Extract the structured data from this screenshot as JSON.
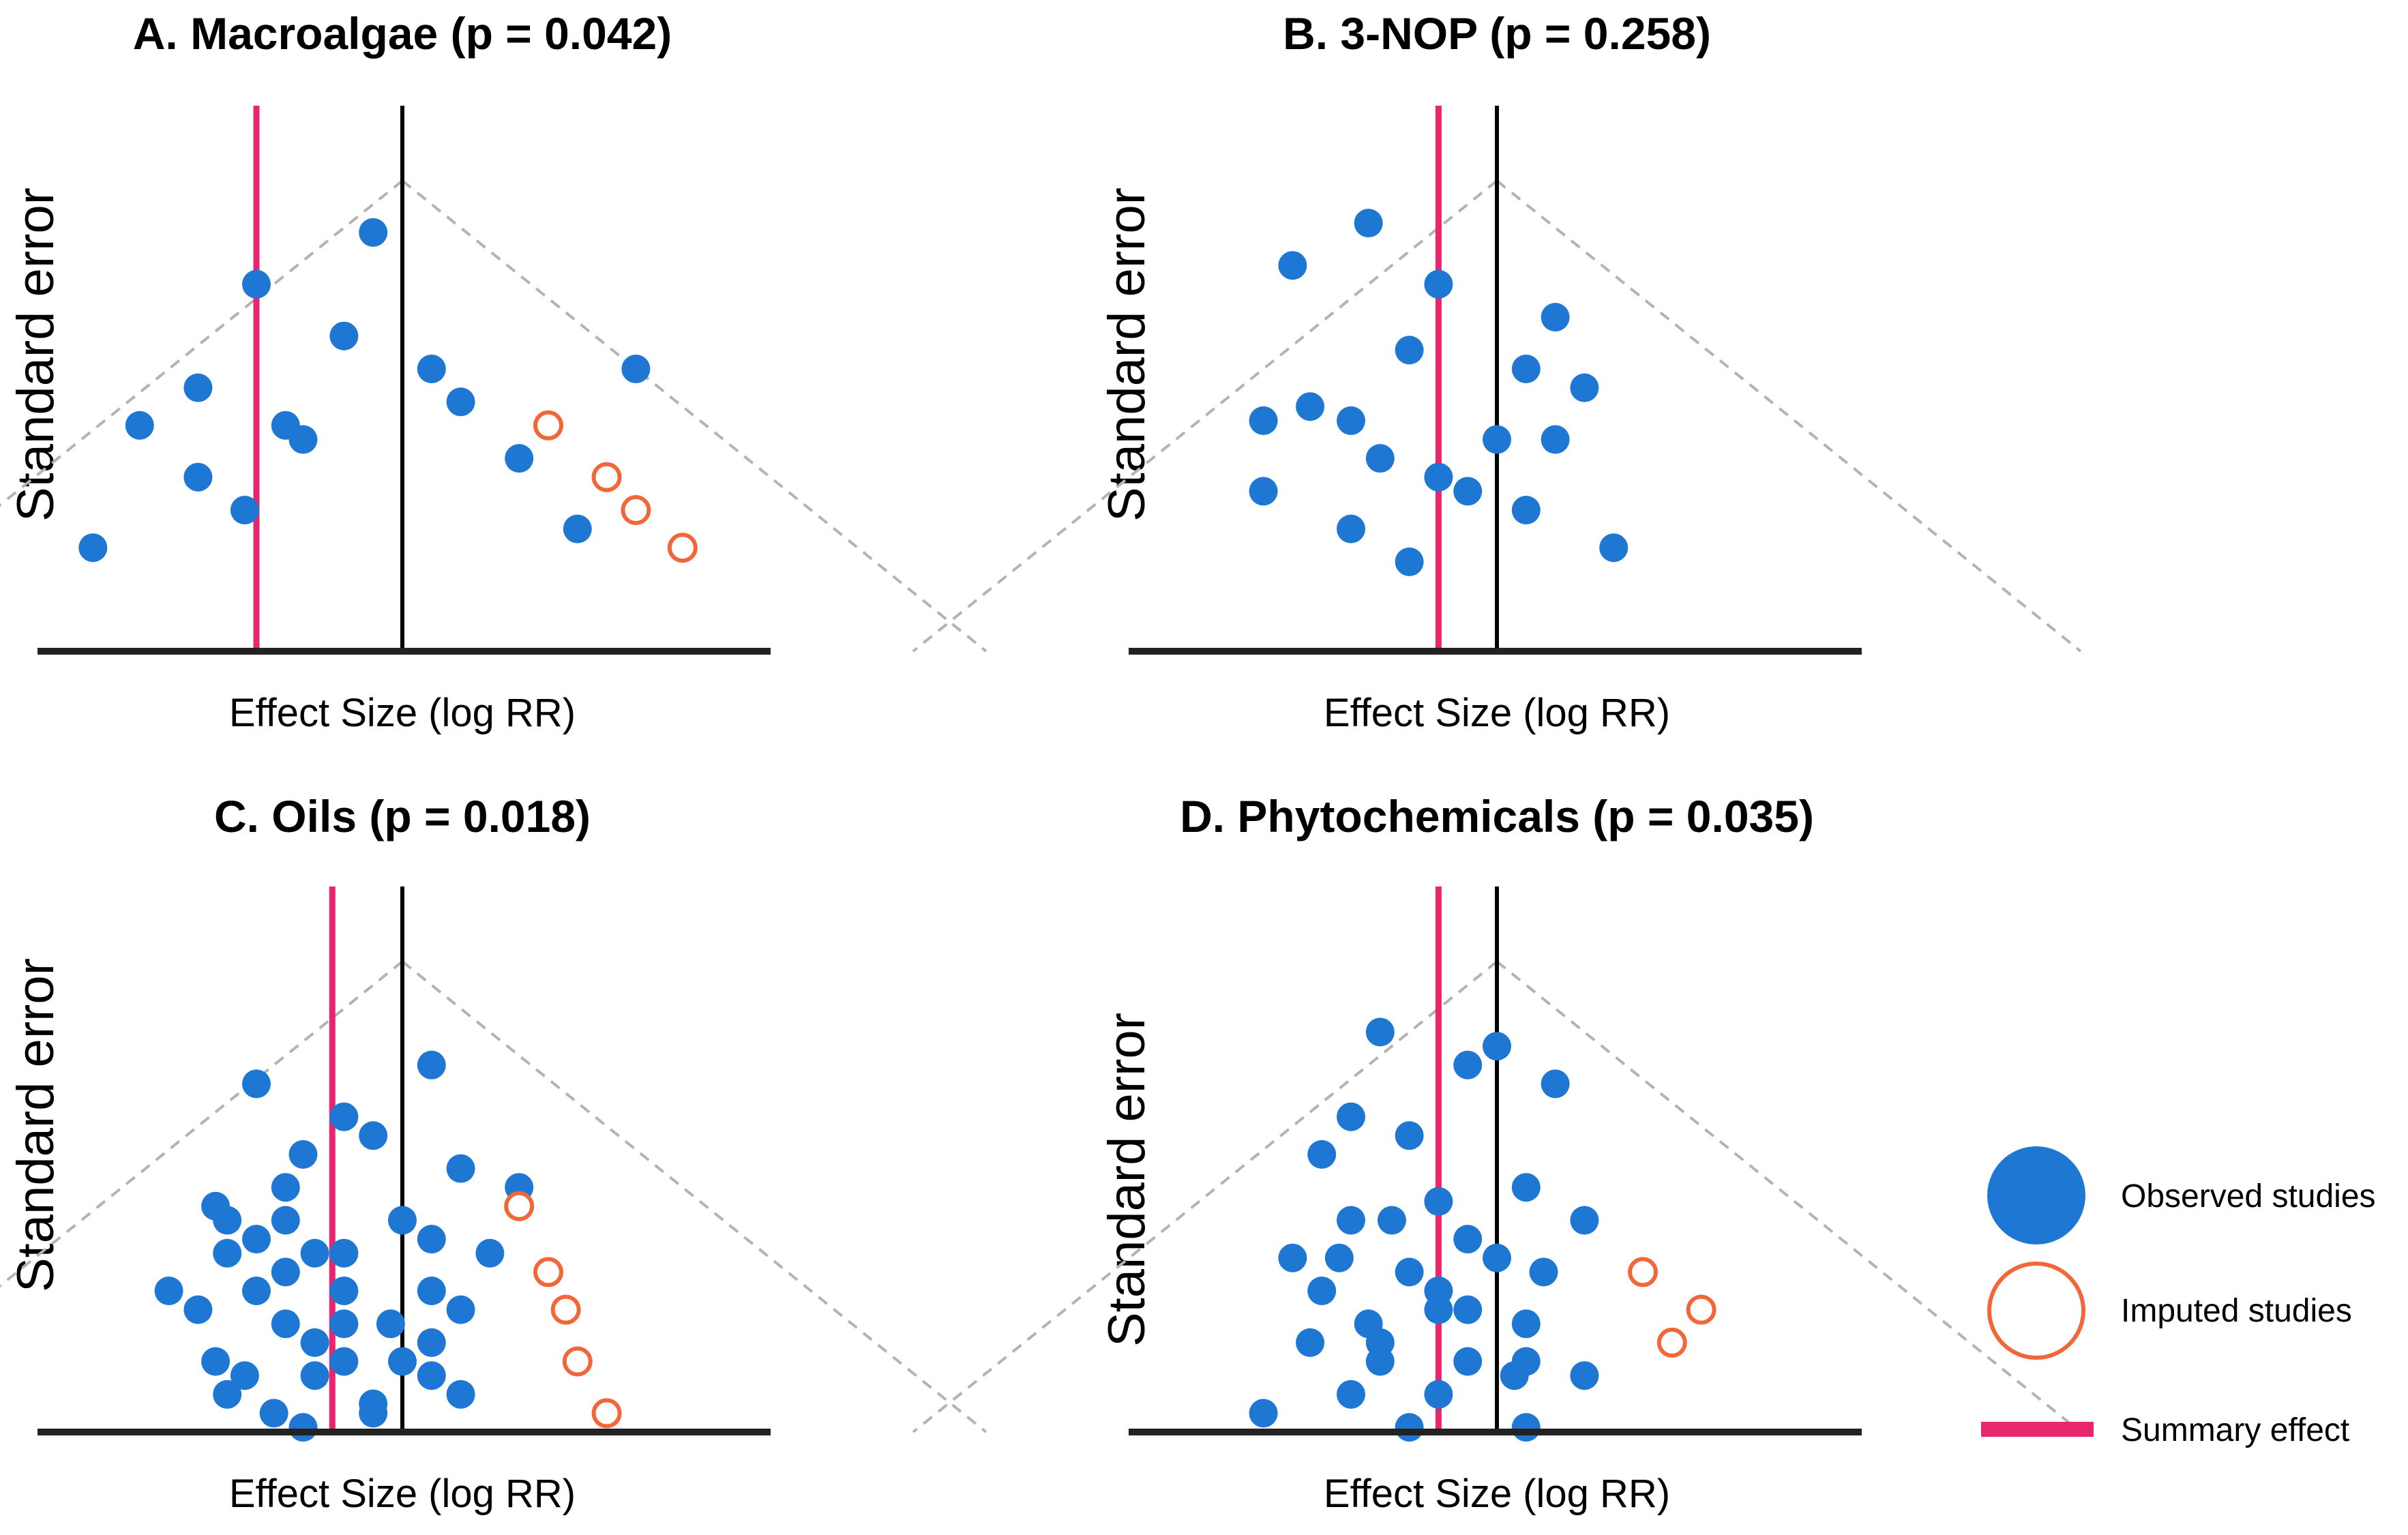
{
  "colors": {
    "observed": "#1f77d4",
    "imputed": "#f2673a",
    "summary": "#e8256f",
    "zero_line": "#000000",
    "funnel": "#b3b3b3"
  },
  "legend": {
    "observed": "Observed studies",
    "imputed": "Imputed studies",
    "summary": "Summary effect"
  },
  "chart_data": [
    {
      "type": "scatter",
      "subtype": "funnel",
      "title": "A. Macroalgae (p = 0.042)",
      "xlabel": "Effect Size (log RR)",
      "ylabel": "Standard error",
      "xlim": [
        -2.0,
        2.0
      ],
      "ylim": [
        0,
        1.0
      ],
      "y_inverted": true,
      "null_effect": 0,
      "summary_effect": -0.5,
      "observed": [
        {
          "x": -0.1,
          "y": 0.11
        },
        {
          "x": -0.5,
          "y": 0.22
        },
        {
          "x": -0.2,
          "y": 0.33
        },
        {
          "x": 0.1,
          "y": 0.4
        },
        {
          "x": 0.8,
          "y": 0.4
        },
        {
          "x": -0.7,
          "y": 0.44
        },
        {
          "x": 0.2,
          "y": 0.47
        },
        {
          "x": -0.9,
          "y": 0.52
        },
        {
          "x": -0.4,
          "y": 0.52
        },
        {
          "x": -0.34,
          "y": 0.55
        },
        {
          "x": 0.4,
          "y": 0.59
        },
        {
          "x": -0.7,
          "y": 0.63
        },
        {
          "x": -0.54,
          "y": 0.7
        },
        {
          "x": 0.6,
          "y": 0.74
        },
        {
          "x": -1.06,
          "y": 0.78
        }
      ],
      "imputed": [
        {
          "x": 0.5,
          "y": 0.52
        },
        {
          "x": 0.7,
          "y": 0.63
        },
        {
          "x": 0.8,
          "y": 0.7
        },
        {
          "x": 0.96,
          "y": 0.78
        }
      ]
    },
    {
      "type": "scatter",
      "subtype": "funnel",
      "title": "B. 3-NOP (p = 0.258)",
      "xlabel": "Effect Size (log RR)",
      "ylabel": "Standard error",
      "xlim": [
        -2.0,
        2.0
      ],
      "ylim": [
        0,
        1.0
      ],
      "y_inverted": true,
      "null_effect": 0,
      "summary_effect": -0.2,
      "observed": [
        {
          "x": -0.44,
          "y": 0.09
        },
        {
          "x": -0.7,
          "y": 0.18
        },
        {
          "x": -0.2,
          "y": 0.22
        },
        {
          "x": 0.2,
          "y": 0.29
        },
        {
          "x": -0.3,
          "y": 0.36
        },
        {
          "x": 0.1,
          "y": 0.4
        },
        {
          "x": 0.3,
          "y": 0.44
        },
        {
          "x": -0.64,
          "y": 0.48
        },
        {
          "x": -0.8,
          "y": 0.51
        },
        {
          "x": -0.5,
          "y": 0.51
        },
        {
          "x": 0.0,
          "y": 0.55
        },
        {
          "x": 0.2,
          "y": 0.55
        },
        {
          "x": -0.4,
          "y": 0.59
        },
        {
          "x": -0.2,
          "y": 0.63
        },
        {
          "x": -0.1,
          "y": 0.66
        },
        {
          "x": -0.8,
          "y": 0.66
        },
        {
          "x": 0.1,
          "y": 0.7
        },
        {
          "x": -0.5,
          "y": 0.74
        },
        {
          "x": 0.4,
          "y": 0.78
        },
        {
          "x": -0.3,
          "y": 0.81
        }
      ],
      "imputed": []
    },
    {
      "type": "scatter",
      "subtype": "funnel",
      "title": "C. Oils (p = 0.018)",
      "xlabel": "Effect Size (log RR)",
      "ylabel": "Standard error",
      "xlim": [
        -2.0,
        2.0
      ],
      "ylim": [
        0,
        1.0
      ],
      "y_inverted": true,
      "null_effect": 0,
      "summary_effect": -0.24,
      "observed": [
        {
          "x": 0.1,
          "y": 0.22
        },
        {
          "x": -0.5,
          "y": 0.26
        },
        {
          "x": -0.2,
          "y": 0.33
        },
        {
          "x": -0.1,
          "y": 0.37
        },
        {
          "x": -0.34,
          "y": 0.41
        },
        {
          "x": 0.2,
          "y": 0.44
        },
        {
          "x": 0.4,
          "y": 0.48
        },
        {
          "x": -0.4,
          "y": 0.48
        },
        {
          "x": -0.64,
          "y": 0.52
        },
        {
          "x": -0.6,
          "y": 0.55
        },
        {
          "x": -0.4,
          "y": 0.55
        },
        {
          "x": 0.0,
          "y": 0.55
        },
        {
          "x": -0.5,
          "y": 0.59
        },
        {
          "x": 0.1,
          "y": 0.59
        },
        {
          "x": -0.3,
          "y": 0.62
        },
        {
          "x": -0.2,
          "y": 0.62
        },
        {
          "x": 0.3,
          "y": 0.62
        },
        {
          "x": -0.6,
          "y": 0.62
        },
        {
          "x": -0.4,
          "y": 0.66
        },
        {
          "x": -0.8,
          "y": 0.7
        },
        {
          "x": -0.5,
          "y": 0.7
        },
        {
          "x": -0.2,
          "y": 0.7
        },
        {
          "x": 0.1,
          "y": 0.7
        },
        {
          "x": -0.7,
          "y": 0.74
        },
        {
          "x": 0.2,
          "y": 0.74
        },
        {
          "x": -0.4,
          "y": 0.77
        },
        {
          "x": -0.2,
          "y": 0.77
        },
        {
          "x": -0.04,
          "y": 0.77
        },
        {
          "x": -0.3,
          "y": 0.81
        },
        {
          "x": 0.1,
          "y": 0.81
        },
        {
          "x": -0.64,
          "y": 0.85
        },
        {
          "x": -0.2,
          "y": 0.85
        },
        {
          "x": 0.0,
          "y": 0.85
        },
        {
          "x": -0.54,
          "y": 0.88
        },
        {
          "x": 0.1,
          "y": 0.88
        },
        {
          "x": -0.3,
          "y": 0.88
        },
        {
          "x": -0.6,
          "y": 0.92
        },
        {
          "x": 0.2,
          "y": 0.92
        },
        {
          "x": -0.44,
          "y": 0.96
        },
        {
          "x": -0.1,
          "y": 0.96
        },
        {
          "x": -0.34,
          "y": 0.99
        },
        {
          "x": -0.1,
          "y": 0.94
        }
      ],
      "imputed": [
        {
          "x": 0.4,
          "y": 0.52
        },
        {
          "x": 0.5,
          "y": 0.66
        },
        {
          "x": 0.56,
          "y": 0.74
        },
        {
          "x": 0.6,
          "y": 0.85
        },
        {
          "x": 0.7,
          "y": 0.96
        }
      ]
    },
    {
      "type": "scatter",
      "subtype": "funnel",
      "title": "D. Phytochemicals (p = 0.035)",
      "xlabel": "Effect Size (log RR)",
      "ylabel": "Standard error",
      "xlim": [
        -2.0,
        2.0
      ],
      "ylim": [
        0,
        1.0
      ],
      "y_inverted": true,
      "null_effect": 0,
      "summary_effect": -0.2,
      "observed": [
        {
          "x": -0.4,
          "y": 0.15
        },
        {
          "x": 0.0,
          "y": 0.18
        },
        {
          "x": -0.1,
          "y": 0.22
        },
        {
          "x": 0.2,
          "y": 0.26
        },
        {
          "x": -0.5,
          "y": 0.33
        },
        {
          "x": -0.3,
          "y": 0.37
        },
        {
          "x": -0.6,
          "y": 0.41
        },
        {
          "x": 0.1,
          "y": 0.48
        },
        {
          "x": -0.2,
          "y": 0.51
        },
        {
          "x": -0.5,
          "y": 0.55
        },
        {
          "x": -0.36,
          "y": 0.55
        },
        {
          "x": 0.3,
          "y": 0.55
        },
        {
          "x": -0.1,
          "y": 0.59
        },
        {
          "x": -0.7,
          "y": 0.63
        },
        {
          "x": -0.54,
          "y": 0.63
        },
        {
          "x": 0.0,
          "y": 0.63
        },
        {
          "x": -0.3,
          "y": 0.66
        },
        {
          "x": 0.16,
          "y": 0.66
        },
        {
          "x": -0.6,
          "y": 0.7
        },
        {
          "x": -0.2,
          "y": 0.7
        },
        {
          "x": -0.1,
          "y": 0.74
        },
        {
          "x": -0.2,
          "y": 0.74
        },
        {
          "x": 0.1,
          "y": 0.77
        },
        {
          "x": -0.44,
          "y": 0.77
        },
        {
          "x": -0.64,
          "y": 0.81
        },
        {
          "x": -0.4,
          "y": 0.81
        },
        {
          "x": -0.4,
          "y": 0.85
        },
        {
          "x": -0.1,
          "y": 0.85
        },
        {
          "x": 0.1,
          "y": 0.85
        },
        {
          "x": 0.3,
          "y": 0.88
        },
        {
          "x": 0.06,
          "y": 0.88
        },
        {
          "x": -0.5,
          "y": 0.92
        },
        {
          "x": -0.2,
          "y": 0.92
        },
        {
          "x": -0.8,
          "y": 0.96
        },
        {
          "x": -0.3,
          "y": 0.99
        },
        {
          "x": 0.1,
          "y": 0.99
        }
      ],
      "imputed": [
        {
          "x": 0.5,
          "y": 0.66
        },
        {
          "x": 0.7,
          "y": 0.74
        },
        {
          "x": 0.6,
          "y": 0.81
        }
      ]
    }
  ]
}
